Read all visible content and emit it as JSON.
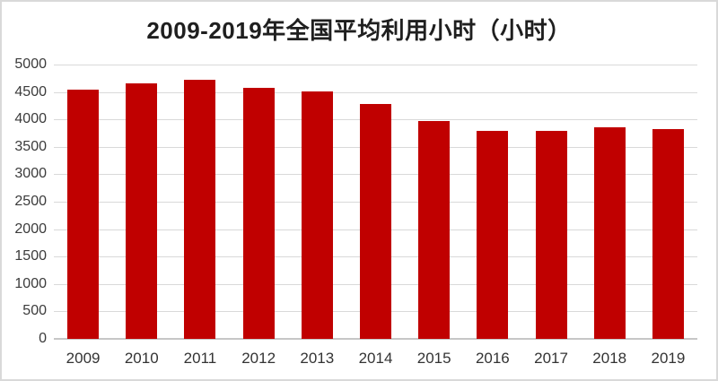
{
  "chart_data": {
    "type": "bar",
    "title": "2009-2019年全国平均利用小时（小时）",
    "categories": [
      "2009",
      "2010",
      "2011",
      "2012",
      "2013",
      "2014",
      "2015",
      "2016",
      "2017",
      "2018",
      "2019"
    ],
    "values": [
      4546,
      4650,
      4730,
      4572,
      4511,
      4286,
      3969,
      3785,
      3786,
      3862,
      3825
    ],
    "xlabel": "",
    "ylabel": "",
    "ylim": [
      0,
      5000
    ],
    "ytick_step": 500,
    "ytick_labels": [
      "0",
      "500",
      "1000",
      "1500",
      "2000",
      "2500",
      "3000",
      "3500",
      "4000",
      "4500",
      "5000"
    ],
    "grid": true,
    "legend": false,
    "bar_color": "#c00000",
    "gridline_color": "#d9d9d9",
    "axis_line_color": "#c6c6c6",
    "title_color": "#1f1f1f",
    "tick_label_color": "#3b3b3b"
  }
}
